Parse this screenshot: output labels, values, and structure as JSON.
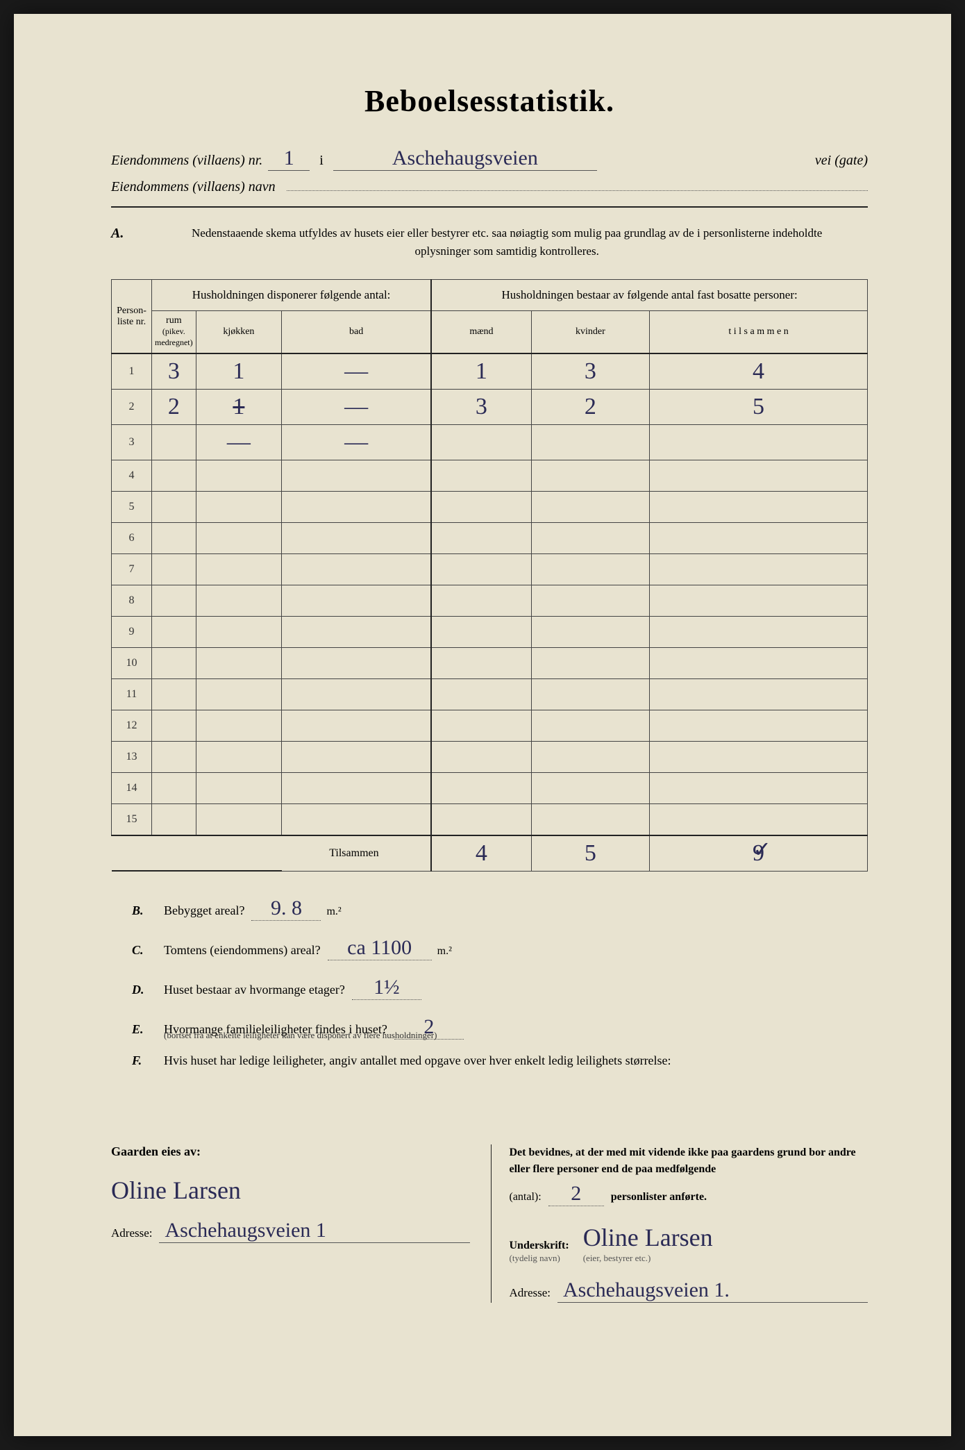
{
  "title": "Beboelsesstatistik.",
  "header": {
    "property_nr_label": "Eiendommens (villaens) nr.",
    "property_nr": "1",
    "in": "i",
    "street": "Aschehaugsveien",
    "street_suffix": "vei (gate)",
    "property_name_label": "Eiendommens (villaens) navn"
  },
  "instructions": "Nedenstaaende skema utfyldes av husets eier eller bestyrer etc. saa nøiagtig som mulig paa grundlag av de i personlisterne indeholdte oplysninger som samtidig kontrolleres.",
  "section_a_letter": "A.",
  "table": {
    "col_personliste": "Person-liste nr.",
    "group1": "Husholdningen disponerer følgende antal:",
    "col_rum": "rum",
    "col_rum_note": "(pikev. medregnet)",
    "col_kjokken": "kjøkken",
    "col_bad": "bad",
    "group2": "Husholdningen bestaar av følgende antal fast bosatte personer:",
    "col_maend": "mænd",
    "col_kvinder": "kvinder",
    "col_tilsammen": "t i l s a m m e n",
    "rows": [
      {
        "nr": "1",
        "rum": "3",
        "kjokken": "1",
        "bad": "—",
        "maend": "1",
        "kvinder": "3",
        "tilsammen": "4"
      },
      {
        "nr": "2",
        "rum": "2",
        "kjokken": "1̶",
        "bad": "—",
        "maend": "3",
        "kvinder": "2",
        "tilsammen": "5"
      },
      {
        "nr": "3",
        "rum": "",
        "kjokken": "—",
        "bad": "—",
        "maend": "",
        "kvinder": "",
        "tilsammen": ""
      },
      {
        "nr": "4"
      },
      {
        "nr": "5"
      },
      {
        "nr": "6"
      },
      {
        "nr": "7"
      },
      {
        "nr": "8"
      },
      {
        "nr": "9"
      },
      {
        "nr": "10"
      },
      {
        "nr": "11"
      },
      {
        "nr": "12"
      },
      {
        "nr": "13"
      },
      {
        "nr": "14"
      },
      {
        "nr": "15"
      }
    ],
    "tilsammen_label": "Tilsammen",
    "totals": {
      "maend": "4",
      "kvinder": "5",
      "tilsammen": "9"
    }
  },
  "questions": {
    "B": {
      "letter": "B.",
      "text": "Bebygget areal?",
      "value": "9. 8",
      "unit": "m.²"
    },
    "C": {
      "letter": "C.",
      "text": "Tomtens (eiendommens) areal?",
      "value": "ca 1100",
      "unit": "m.²"
    },
    "D": {
      "letter": "D.",
      "text": "Huset bestaar av hvormange etager?",
      "value": "1½"
    },
    "E": {
      "letter": "E.",
      "text": "Hvormange familieleiligheter findes i huset?",
      "value": "2",
      "note": "(bortset fra at enkelte leiligheter kan være disponert av flere husholdninger)"
    },
    "F": {
      "letter": "F.",
      "text": "Hvis huset har ledige leiligheter, angiv antallet med opgave over hver enkelt ledig leilighets størrelse:"
    }
  },
  "footer": {
    "left_heading": "Gaarden eies av:",
    "owner_name": "Oline Larsen",
    "adresse_label": "Adresse:",
    "owner_address": "Aschehaugsveien 1",
    "right_text_1": "Det bevidnes, at der med mit vidende ikke paa gaardens grund bor andre eller flere personer end de paa medfølgende",
    "antal_label": "(antal):",
    "antal_value": "2",
    "right_text_2": "personlister anførte.",
    "underskrift_label": "Underskrift:",
    "underskrift_note": "(tydelig navn)",
    "signature": "Oline Larsen",
    "signature_note": "(eier, bestyrer etc.)",
    "right_address": "Aschehaugsveien 1."
  }
}
